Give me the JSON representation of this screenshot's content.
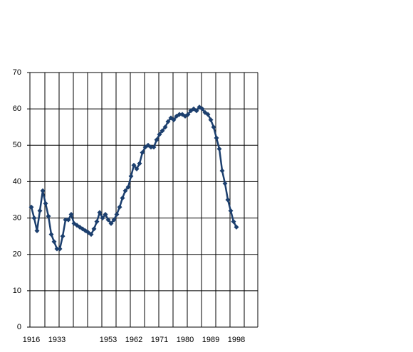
{
  "chart_data": {
    "type": "line",
    "categories": [
      "1916",
      null,
      null,
      null,
      null,
      null,
      null,
      null,
      null,
      "1933",
      null,
      null,
      null,
      null,
      null,
      null,
      null,
      null,
      null,
      null,
      null,
      null,
      null,
      null,
      null,
      null,
      null,
      "1953",
      null,
      null,
      null,
      null,
      null,
      null,
      null,
      null,
      "1962",
      null,
      null,
      null,
      null,
      null,
      null,
      null,
      null,
      "1971",
      null,
      null,
      null,
      null,
      null,
      null,
      null,
      null,
      "1980",
      null,
      null,
      null,
      null,
      null,
      null,
      null,
      null,
      "1989",
      null,
      null,
      null,
      null,
      null,
      null,
      null,
      null,
      "1998"
    ],
    "values": [
      33,
      30,
      26.5,
      32,
      37.5,
      34,
      30.5,
      25.5,
      23.5,
      21.5,
      21.5,
      25,
      29.5,
      29.5,
      31,
      28.5,
      28,
      27.5,
      27,
      26.5,
      26,
      25.5,
      27,
      29,
      31.5,
      30,
      31,
      29.5,
      28.5,
      29.5,
      31,
      33,
      35.5,
      37.5,
      38.5,
      41.5,
      44.5,
      43.5,
      45,
      48,
      49.5,
      50,
      49.5,
      49.5,
      51.5,
      53,
      54,
      55,
      56.5,
      57.5,
      57,
      58,
      58.5,
      58.5,
      58,
      58.5,
      59.5,
      60,
      59.5,
      60.5,
      60,
      59,
      58.5,
      57,
      55,
      52,
      49,
      43,
      39.5,
      35,
      32,
      29,
      27.5
    ],
    "color": "#1c3f6e",
    "ylim": [
      0,
      70
    ],
    "yticks": [
      0,
      10,
      20,
      30,
      40,
      50,
      60,
      70
    ],
    "grid": true
  }
}
